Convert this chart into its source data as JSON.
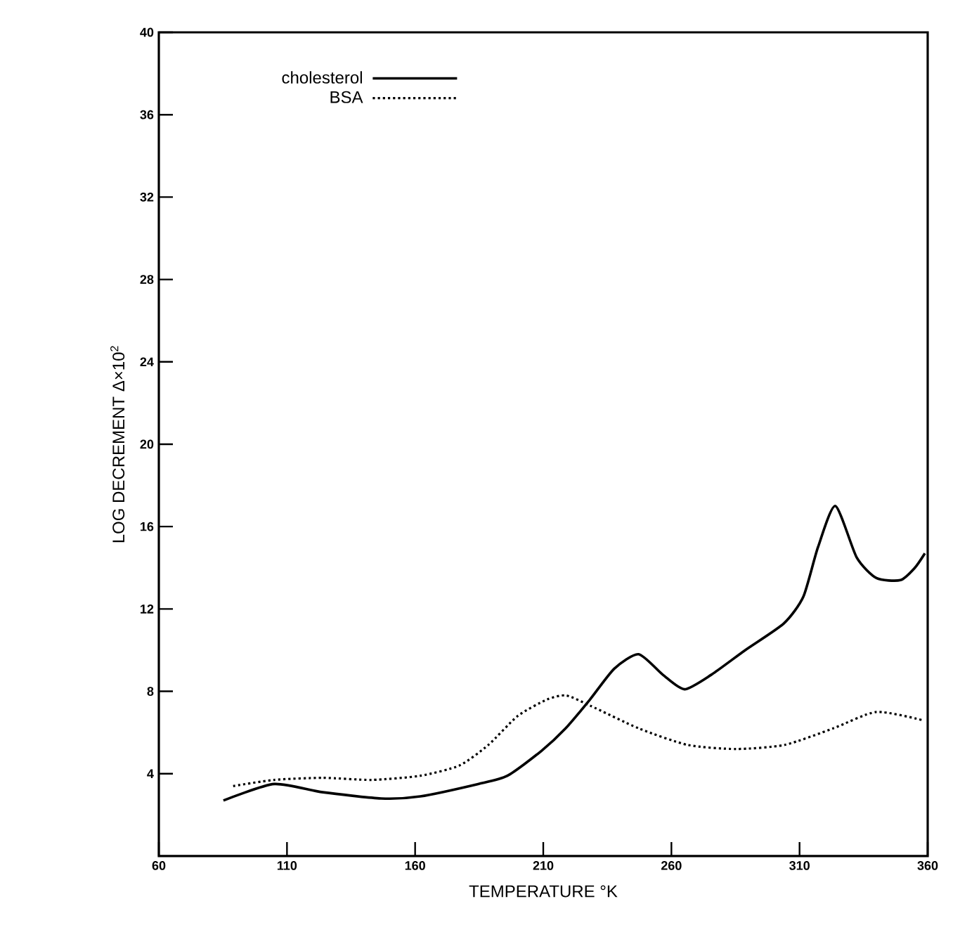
{
  "chart_data": {
    "type": "line",
    "xlabel": "TEMPERATURE   °K",
    "ylabel": "LOG  DECREMENT  Δ×10$^{2}$",
    "xlim": [
      60,
      360
    ],
    "ylim": [
      0,
      40
    ],
    "xticks": [
      60,
      110,
      160,
      210,
      260,
      310,
      360
    ],
    "yticks": [
      4,
      8,
      12,
      16,
      20,
      24,
      28,
      32,
      36,
      40
    ],
    "legend": "top left",
    "grid": false,
    "series": [
      {
        "name": "cholesterol",
        "color": "#000000",
        "line_style": "solid",
        "x": [
          85.2,
          105,
          124,
          146.7,
          162,
          184.6,
          196,
          209.2,
          218.7,
          228.2,
          237.7,
          247.2,
          256.7,
          265.1,
          275.5,
          288.8,
          303.9,
          311.5,
          317.2,
          324,
          332.3,
          340,
          349.4,
          355,
          358.9
        ],
        "values": [
          2.7,
          3.5,
          3.1,
          2.8,
          2.9,
          3.5,
          3.9,
          5.1,
          6.2,
          7.6,
          9.1,
          9.8,
          8.8,
          8.1,
          8.8,
          10.0,
          11.3,
          12.6,
          15.0,
          17.0,
          14.5,
          13.5,
          13.4,
          14.0,
          14.7
        ]
      },
      {
        "name": "BSA",
        "color": "#000000",
        "line_style": "dotted",
        "x": [
          89,
          105,
          124,
          143,
          162,
          177.3,
          188.6,
          200,
          211.4,
          218.9,
          228.4,
          247.3,
          266.3,
          285.2,
          304.2,
          323.1,
          340,
          358
        ],
        "values": [
          3.4,
          3.7,
          3.8,
          3.7,
          3.9,
          4.4,
          5.4,
          6.8,
          7.6,
          7.8,
          7.3,
          6.2,
          5.4,
          5.2,
          5.4,
          6.2,
          7.0,
          6.6
        ]
      }
    ]
  }
}
